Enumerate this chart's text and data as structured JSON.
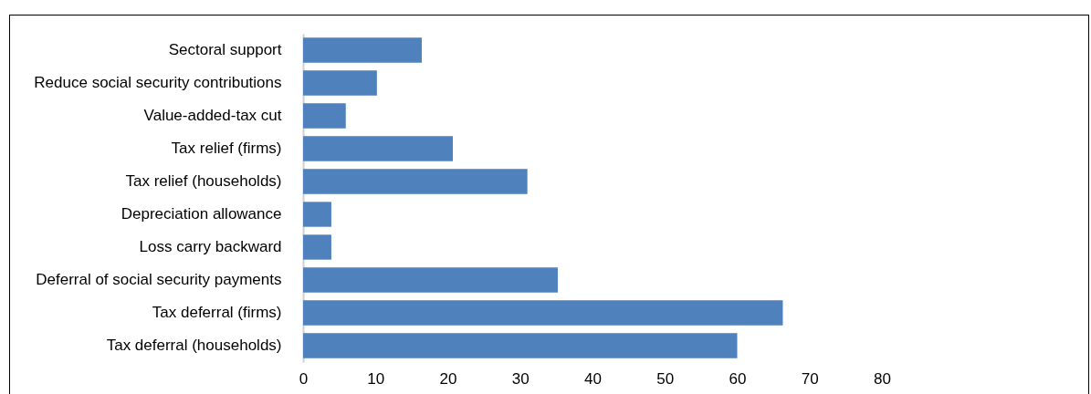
{
  "chart_data": {
    "type": "bar",
    "orientation": "horizontal",
    "categories": [
      "Sectoral support",
      "Reduce social security contributions",
      "Value-added-tax cut",
      "Tax relief (firms)",
      "Tax relief (households)",
      "Depreciation allowance",
      "Loss carry backward",
      "Deferral of social security payments",
      "Tax deferral (firms)",
      "Tax deferral (households)"
    ],
    "values": [
      16.4,
      10.2,
      5.9,
      20.7,
      31.0,
      3.9,
      3.9,
      35.2,
      66.3,
      60.0
    ],
    "color": "#4f81bd",
    "xlim": [
      0,
      80
    ],
    "xticks": [
      0,
      10,
      20,
      30,
      40,
      50,
      60,
      70,
      80
    ],
    "grid": false
  }
}
